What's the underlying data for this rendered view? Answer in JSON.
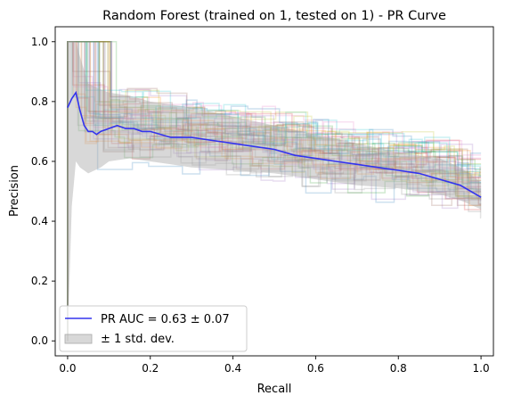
{
  "chart_data": {
    "type": "line",
    "title": "Random Forest (trained on 1, tested on 1) -  PR Curve",
    "xlabel": "Recall",
    "ylabel": "Precision",
    "xlim": [
      -0.03,
      1.03
    ],
    "ylim": [
      -0.05,
      1.05
    ],
    "xticks": [
      "0.0",
      "0.2",
      "0.4",
      "0.6",
      "0.8",
      "1.0"
    ],
    "yticks": [
      "0.0",
      "0.2",
      "0.4",
      "0.6",
      "0.8",
      "1.0"
    ],
    "grid": false,
    "legend_position": "lower-left",
    "mean_color": "#3333ee",
    "band_color": "#a9a9a9",
    "series": [
      {
        "name": "PR AUC = 0.63 ± 0.07",
        "x": [
          0.0,
          0.01,
          0.02,
          0.03,
          0.04,
          0.05,
          0.06,
          0.07,
          0.08,
          0.1,
          0.12,
          0.14,
          0.16,
          0.18,
          0.2,
          0.25,
          0.3,
          0.35,
          0.4,
          0.45,
          0.5,
          0.55,
          0.6,
          0.65,
          0.7,
          0.75,
          0.8,
          0.85,
          0.9,
          0.95,
          1.0
        ],
        "y": [
          0.78,
          0.81,
          0.83,
          0.77,
          0.72,
          0.7,
          0.7,
          0.69,
          0.7,
          0.71,
          0.72,
          0.71,
          0.71,
          0.7,
          0.7,
          0.68,
          0.68,
          0.67,
          0.66,
          0.65,
          0.64,
          0.62,
          0.61,
          0.6,
          0.59,
          0.58,
          0.57,
          0.56,
          0.54,
          0.52,
          0.48
        ]
      }
    ],
    "band": {
      "name": "± 1 std. dev.",
      "x": [
        0.0,
        0.01,
        0.02,
        0.03,
        0.05,
        0.08,
        0.1,
        0.15,
        0.2,
        0.25,
        0.3,
        0.4,
        0.5,
        0.6,
        0.7,
        0.8,
        0.9,
        0.95,
        1.0
      ],
      "upper": [
        1.0,
        1.0,
        1.0,
        0.95,
        0.86,
        0.84,
        0.83,
        0.82,
        0.8,
        0.79,
        0.78,
        0.75,
        0.72,
        0.69,
        0.66,
        0.63,
        0.61,
        0.58,
        0.53
      ],
      "lower": [
        0.0,
        0.45,
        0.6,
        0.58,
        0.56,
        0.58,
        0.6,
        0.61,
        0.6,
        0.59,
        0.58,
        0.57,
        0.56,
        0.54,
        0.52,
        0.51,
        0.49,
        0.47,
        0.44
      ]
    },
    "fold_curve_count": 50,
    "fold_curve_opacity": 0.22,
    "fold_colors": [
      "#1f77b4",
      "#ff7f0e",
      "#2ca02c",
      "#d62728",
      "#9467bd",
      "#8c564b",
      "#e377c2",
      "#7f7f7f",
      "#bcbd22",
      "#17becf"
    ]
  }
}
